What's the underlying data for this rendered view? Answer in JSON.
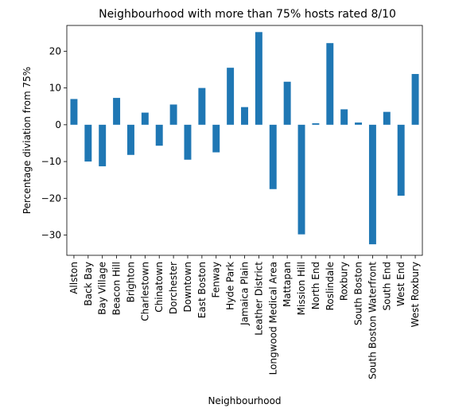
{
  "chart_data": {
    "type": "bar",
    "title": "Neighbourhood with more than 75% hosts rated 8/10",
    "xlabel": "Neighbourhood",
    "ylabel": "Percentage diviation from 75%",
    "ylim": [
      -35.5,
      27
    ],
    "yticks": [
      -30,
      -20,
      -10,
      0,
      10,
      20
    ],
    "grid": false,
    "legend": "none",
    "bar_color": "#1f77b4",
    "categories": [
      "Allston",
      "Back Bay",
      "Bay Village",
      "Beacon Hill",
      "Brighton",
      "Charlestown",
      "Chinatown",
      "Dorchester",
      "Downtown",
      "East Boston",
      "Fenway",
      "Hyde Park",
      "Jamaica Plain",
      "Leather District",
      "Longwood Medical Area",
      "Mattapan",
      "Mission Hill",
      "North End",
      "Roslindale",
      "Roxbury",
      "South Boston",
      "South Boston Waterfront",
      "South End",
      "West End",
      "West Roxbury"
    ],
    "values": [
      7.0,
      -10.0,
      -11.3,
      7.3,
      -8.2,
      3.3,
      -5.7,
      5.5,
      -9.5,
      10.0,
      -7.5,
      15.5,
      4.8,
      25.2,
      -17.5,
      11.7,
      -29.8,
      0.4,
      22.2,
      4.2,
      0.6,
      -32.5,
      3.5,
      -19.3,
      13.8
    ]
  }
}
